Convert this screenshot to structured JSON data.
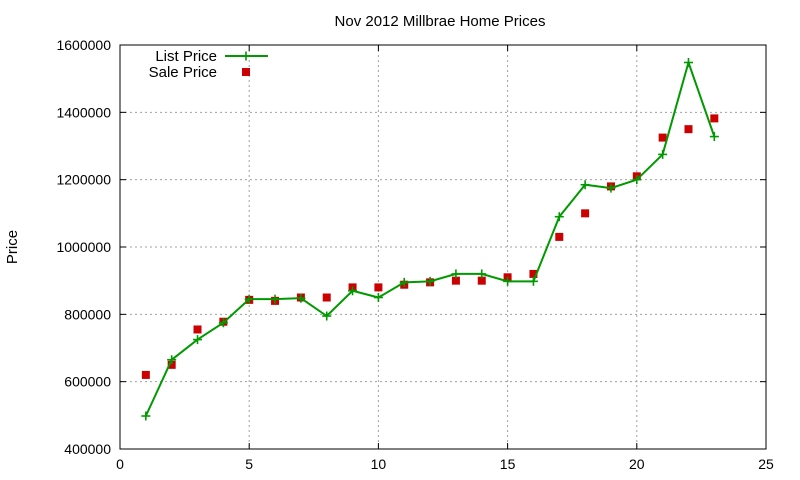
{
  "chart_data": {
    "type": "line",
    "title": "Nov 2012 Millbrae Home Prices",
    "xlabel": "",
    "ylabel": "Price",
    "xlim": [
      0,
      25
    ],
    "ylim": [
      400000,
      1600000
    ],
    "xticks": [
      0,
      5,
      10,
      15,
      20,
      25
    ],
    "yticks": [
      400000,
      600000,
      800000,
      1000000,
      1200000,
      1400000,
      1600000
    ],
    "grid": true,
    "legend_position": "top-left",
    "series": [
      {
        "name": "List Price",
        "style": "line-points",
        "marker": "plus",
        "color": "#009900",
        "x": [
          1,
          2,
          3,
          4,
          5,
          6,
          7,
          8,
          9,
          10,
          11,
          12,
          13,
          14,
          15,
          16,
          17,
          18,
          19,
          20,
          21,
          22,
          23
        ],
        "values": [
          498000,
          665000,
          725000,
          775000,
          845000,
          845000,
          848000,
          795000,
          870000,
          850000,
          895000,
          898000,
          920000,
          920000,
          898000,
          898000,
          1090000,
          1185000,
          1175000,
          1200000,
          1275000,
          1548000,
          1328000
        ]
      },
      {
        "name": "Sale Price",
        "style": "points",
        "marker": "square",
        "color": "#cc0000",
        "x": [
          1,
          2,
          3,
          4,
          5,
          6,
          7,
          8,
          9,
          10,
          11,
          12,
          13,
          14,
          15,
          16,
          17,
          18,
          19,
          20,
          21,
          22,
          23
        ],
        "values": [
          620000,
          650000,
          755000,
          778000,
          843000,
          840000,
          850000,
          850000,
          880000,
          880000,
          888000,
          895000,
          900000,
          900000,
          910000,
          920000,
          1030000,
          1100000,
          1180000,
          1210000,
          1325000,
          1350000,
          1382000
        ]
      }
    ]
  }
}
